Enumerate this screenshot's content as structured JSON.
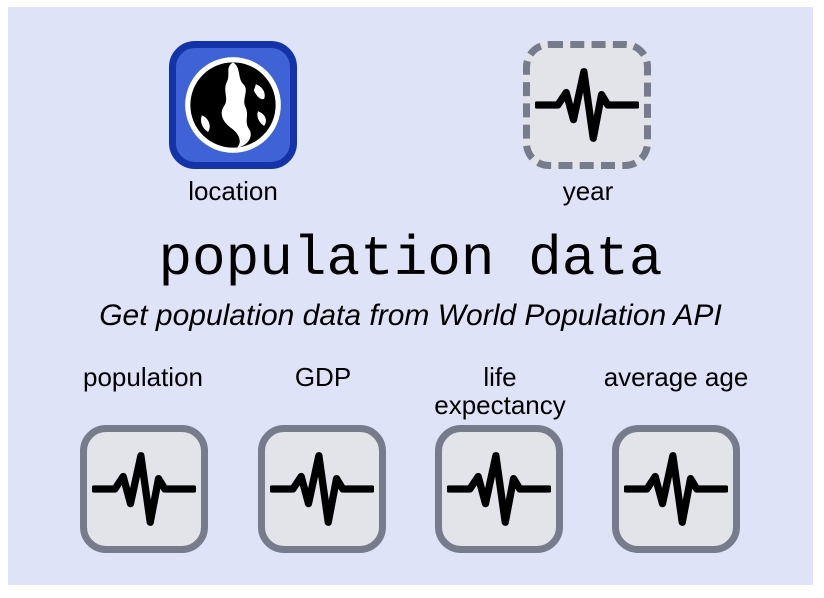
{
  "block": {
    "title": "population data",
    "subtitle": "Get population data from World Population API"
  },
  "inputs": [
    {
      "label": "location",
      "icon": "globe-icon"
    },
    {
      "label": "year",
      "icon": "waveform-icon"
    }
  ],
  "outputs": [
    {
      "label": "population",
      "icon": "waveform-icon"
    },
    {
      "label": "GDP",
      "icon": "waveform-icon"
    },
    {
      "label_line1": "life",
      "label_line2": "expectancy",
      "icon": "waveform-icon"
    },
    {
      "label": "average age",
      "icon": "waveform-icon"
    }
  ],
  "colors": {
    "background": "#dfe3f8",
    "port_fill": "#e3e4ea",
    "port_border": "#777c8c",
    "location_fill": "#3f63d6",
    "location_border": "#1533a8"
  }
}
